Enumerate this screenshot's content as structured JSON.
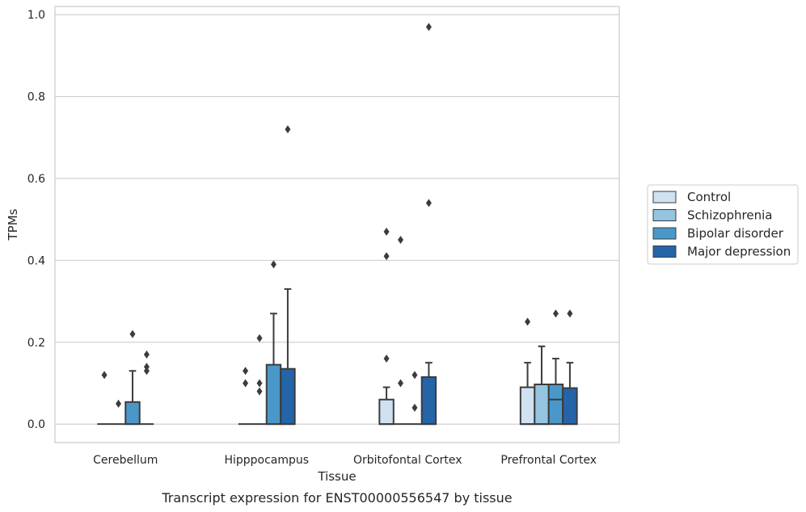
{
  "caption": "Transcript expression for ENST00000556547 by tissue",
  "colors": {
    "Control": "#d0e1f2",
    "Schizophrenia": "#94c4df",
    "Bipolar disorder": "#4a98c9",
    "Major depression": "#2464a8",
    "grid": "#cccccc",
    "box_line": "#3c3c3c"
  },
  "chart_data": {
    "type": "box",
    "title": "",
    "xlabel": "Tissue",
    "ylabel": "TPMs",
    "ylim": [
      -0.045,
      1.02
    ],
    "yticks": [
      0.0,
      0.2,
      0.4,
      0.6,
      0.8,
      1.0
    ],
    "ytick_labels": [
      "0.0",
      "0.2",
      "0.4",
      "0.6",
      "0.8",
      "1.0"
    ],
    "grid": true,
    "legend_position": "right",
    "categories": [
      "Cerebellum",
      "Hipppocampus",
      "Orbitofontal Cortex",
      "Prefrontal Cortex"
    ],
    "series": [
      {
        "name": "Control",
        "boxes": [
          {
            "q1": 0,
            "median": 0,
            "q3": 0,
            "whisker_low": 0,
            "whisker_high": 0,
            "outliers": [
              0.12
            ]
          },
          {
            "q1": 0,
            "median": 0,
            "q3": 0,
            "whisker_low": 0,
            "whisker_high": 0,
            "outliers": [
              0.1,
              0.13
            ]
          },
          {
            "q1": 0,
            "median": 0,
            "q3": 0.06,
            "whisker_low": 0,
            "whisker_high": 0.09,
            "outliers": [
              0.16,
              0.41,
              0.47
            ]
          },
          {
            "q1": 0,
            "median": 0,
            "q3": 0.09,
            "whisker_low": 0,
            "whisker_high": 0.15,
            "outliers": [
              0.25
            ]
          }
        ]
      },
      {
        "name": "Schizophrenia",
        "boxes": [
          {
            "q1": 0,
            "median": 0,
            "q3": 0,
            "whisker_low": 0,
            "whisker_high": 0,
            "outliers": [
              0.05
            ]
          },
          {
            "q1": 0,
            "median": 0,
            "q3": 0,
            "whisker_low": 0,
            "whisker_high": 0,
            "outliers": [
              0.08,
              0.1,
              0.21
            ]
          },
          {
            "q1": 0,
            "median": 0,
            "q3": 0,
            "whisker_low": 0,
            "whisker_high": 0,
            "outliers": [
              0.1,
              0.45
            ]
          },
          {
            "q1": 0,
            "median": 0,
            "q3": 0.097,
            "whisker_low": 0,
            "whisker_high": 0.19,
            "outliers": []
          }
        ]
      },
      {
        "name": "Bipolar disorder",
        "boxes": [
          {
            "q1": 0,
            "median": 0,
            "q3": 0.054,
            "whisker_low": 0,
            "whisker_high": 0.13,
            "outliers": [
              0.22
            ]
          },
          {
            "q1": 0,
            "median": 0,
            "q3": 0.145,
            "whisker_low": 0,
            "whisker_high": 0.27,
            "outliers": [
              0.39
            ]
          },
          {
            "q1": 0,
            "median": 0,
            "q3": 0,
            "whisker_low": 0,
            "whisker_high": 0,
            "outliers": [
              0.04,
              0.12
            ]
          },
          {
            "q1": 0,
            "median": 0.06,
            "q3": 0.097,
            "whisker_low": 0,
            "whisker_high": 0.16,
            "outliers": [
              0.27
            ]
          }
        ]
      },
      {
        "name": "Major depression",
        "boxes": [
          {
            "q1": 0,
            "median": 0,
            "q3": 0,
            "whisker_low": 0,
            "whisker_high": 0,
            "outliers": [
              0.13,
              0.14,
              0.17
            ]
          },
          {
            "q1": 0,
            "median": 0,
            "q3": 0.135,
            "whisker_low": 0,
            "whisker_high": 0.33,
            "outliers": [
              0.72
            ]
          },
          {
            "q1": 0,
            "median": 0,
            "q3": 0.115,
            "whisker_low": 0,
            "whisker_high": 0.15,
            "outliers": [
              0.54,
              0.97
            ]
          },
          {
            "q1": 0,
            "median": 0,
            "q3": 0.088,
            "whisker_low": 0,
            "whisker_high": 0.15,
            "outliers": [
              0.27
            ]
          }
        ]
      }
    ]
  }
}
